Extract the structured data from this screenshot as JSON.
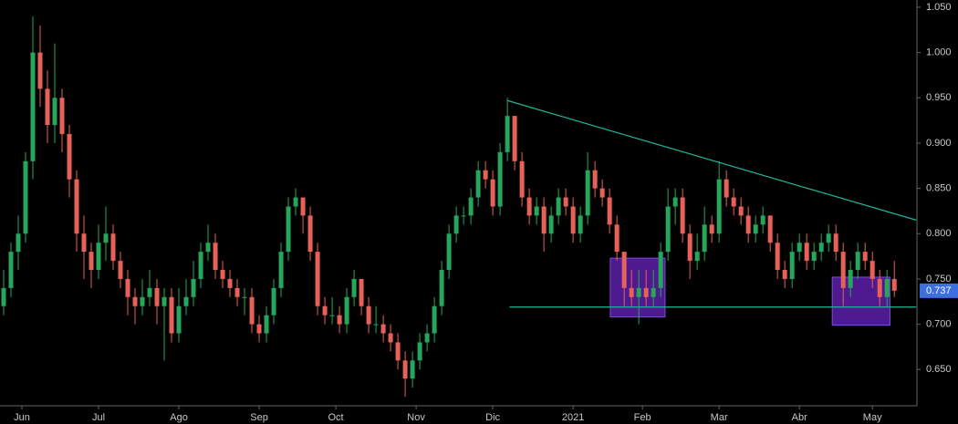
{
  "chart_data": {
    "type": "candlestick",
    "up_color": "#26a65b",
    "down_color": "#e8605a",
    "ylim": [
      0.61,
      1.058
    ],
    "yticks": [
      {
        "value": 0.65,
        "label": "0.650"
      },
      {
        "value": 0.7,
        "label": "0.700"
      },
      {
        "value": 0.75,
        "label": "0.750"
      },
      {
        "value": 0.8,
        "label": "0.800"
      },
      {
        "value": 0.85,
        "label": "0.850"
      },
      {
        "value": 0.9,
        "label": "0.900"
      },
      {
        "value": 0.95,
        "label": "0.950"
      },
      {
        "value": 1.0,
        "label": "1.000"
      },
      {
        "value": 1.05,
        "label": "1.050"
      }
    ],
    "xlim": [
      -0.5,
      125.1
    ],
    "xticks": [
      {
        "value": 2.5,
        "label": "Jun"
      },
      {
        "value": 13,
        "label": "Jul"
      },
      {
        "value": 24,
        "label": "Ago"
      },
      {
        "value": 35,
        "label": "Sep"
      },
      {
        "value": 45.5,
        "label": "Oct"
      },
      {
        "value": 56.5,
        "label": "Nov"
      },
      {
        "value": 67,
        "label": "Dic"
      },
      {
        "value": 78,
        "label": "2021"
      },
      {
        "value": 87.5,
        "label": "Feb"
      },
      {
        "value": 98,
        "label": "Mar"
      },
      {
        "value": 109,
        "label": "Abr"
      },
      {
        "value": 119,
        "label": "May"
      }
    ],
    "ohlc": [
      [
        0.72,
        0.76,
        0.71,
        0.74
      ],
      [
        0.74,
        0.79,
        0.73,
        0.78
      ],
      [
        0.78,
        0.82,
        0.76,
        0.8
      ],
      [
        0.8,
        0.89,
        0.79,
        0.88
      ],
      [
        0.88,
        1.04,
        0.86,
        1.0
      ],
      [
        1.0,
        1.03,
        0.94,
        0.96
      ],
      [
        0.96,
        0.98,
        0.9,
        0.92
      ],
      [
        0.92,
        1.01,
        0.9,
        0.95
      ],
      [
        0.95,
        0.96,
        0.89,
        0.91
      ],
      [
        0.91,
        0.92,
        0.84,
        0.86
      ],
      [
        0.86,
        0.87,
        0.78,
        0.8
      ],
      [
        0.8,
        0.82,
        0.75,
        0.78
      ],
      [
        0.78,
        0.79,
        0.74,
        0.76
      ],
      [
        0.76,
        0.81,
        0.75,
        0.79
      ],
      [
        0.79,
        0.83,
        0.77,
        0.8
      ],
      [
        0.8,
        0.81,
        0.76,
        0.77
      ],
      [
        0.77,
        0.78,
        0.74,
        0.75
      ],
      [
        0.75,
        0.76,
        0.71,
        0.73
      ],
      [
        0.73,
        0.74,
        0.7,
        0.72
      ],
      [
        0.72,
        0.75,
        0.71,
        0.73
      ],
      [
        0.73,
        0.76,
        0.72,
        0.74
      ],
      [
        0.74,
        0.75,
        0.7,
        0.72
      ],
      [
        0.72,
        0.74,
        0.66,
        0.73
      ],
      [
        0.73,
        0.74,
        0.68,
        0.69
      ],
      [
        0.69,
        0.74,
        0.68,
        0.72
      ],
      [
        0.72,
        0.75,
        0.71,
        0.73
      ],
      [
        0.73,
        0.77,
        0.72,
        0.75
      ],
      [
        0.75,
        0.79,
        0.74,
        0.78
      ],
      [
        0.78,
        0.81,
        0.77,
        0.79
      ],
      [
        0.79,
        0.8,
        0.75,
        0.76
      ],
      [
        0.76,
        0.77,
        0.74,
        0.75
      ],
      [
        0.75,
        0.76,
        0.73,
        0.74
      ],
      [
        0.74,
        0.75,
        0.72,
        0.73
      ],
      [
        0.73,
        0.74,
        0.71,
        0.73
      ],
      [
        0.73,
        0.74,
        0.69,
        0.7
      ],
      [
        0.7,
        0.71,
        0.68,
        0.69
      ],
      [
        0.69,
        0.72,
        0.68,
        0.71
      ],
      [
        0.71,
        0.75,
        0.7,
        0.74
      ],
      [
        0.74,
        0.79,
        0.73,
        0.78
      ],
      [
        0.78,
        0.84,
        0.77,
        0.83
      ],
      [
        0.83,
        0.85,
        0.82,
        0.84
      ],
      [
        0.84,
        0.84,
        0.8,
        0.82
      ],
      [
        0.82,
        0.83,
        0.77,
        0.78
      ],
      [
        0.78,
        0.79,
        0.71,
        0.72
      ],
      [
        0.72,
        0.73,
        0.7,
        0.71
      ],
      [
        0.71,
        0.73,
        0.7,
        0.71
      ],
      [
        0.71,
        0.72,
        0.69,
        0.7
      ],
      [
        0.7,
        0.74,
        0.69,
        0.73
      ],
      [
        0.73,
        0.76,
        0.72,
        0.75
      ],
      [
        0.75,
        0.75,
        0.71,
        0.72
      ],
      [
        0.72,
        0.73,
        0.69,
        0.7
      ],
      [
        0.7,
        0.72,
        0.69,
        0.7
      ],
      [
        0.7,
        0.71,
        0.68,
        0.69
      ],
      [
        0.69,
        0.7,
        0.67,
        0.68
      ],
      [
        0.68,
        0.69,
        0.65,
        0.66
      ],
      [
        0.66,
        0.67,
        0.62,
        0.64
      ],
      [
        0.64,
        0.67,
        0.63,
        0.66
      ],
      [
        0.66,
        0.69,
        0.65,
        0.68
      ],
      [
        0.68,
        0.7,
        0.67,
        0.69
      ],
      [
        0.69,
        0.73,
        0.68,
        0.72
      ],
      [
        0.72,
        0.77,
        0.71,
        0.76
      ],
      [
        0.76,
        0.81,
        0.75,
        0.8
      ],
      [
        0.8,
        0.83,
        0.79,
        0.82
      ],
      [
        0.82,
        0.83,
        0.81,
        0.82
      ],
      [
        0.82,
        0.85,
        0.81,
        0.84
      ],
      [
        0.84,
        0.88,
        0.83,
        0.87
      ],
      [
        0.87,
        0.88,
        0.85,
        0.86
      ],
      [
        0.86,
        0.87,
        0.82,
        0.83
      ],
      [
        0.83,
        0.9,
        0.82,
        0.89
      ],
      [
        0.89,
        0.95,
        0.88,
        0.93
      ],
      [
        0.93,
        0.93,
        0.87,
        0.88
      ],
      [
        0.88,
        0.89,
        0.83,
        0.84
      ],
      [
        0.84,
        0.85,
        0.81,
        0.82
      ],
      [
        0.82,
        0.84,
        0.81,
        0.83
      ],
      [
        0.83,
        0.84,
        0.78,
        0.8
      ],
      [
        0.8,
        0.83,
        0.79,
        0.82
      ],
      [
        0.82,
        0.85,
        0.81,
        0.84
      ],
      [
        0.84,
        0.85,
        0.82,
        0.83
      ],
      [
        0.83,
        0.84,
        0.79,
        0.8
      ],
      [
        0.8,
        0.83,
        0.79,
        0.82
      ],
      [
        0.82,
        0.89,
        0.81,
        0.87
      ],
      [
        0.87,
        0.88,
        0.84,
        0.85
      ],
      [
        0.85,
        0.86,
        0.83,
        0.84
      ],
      [
        0.84,
        0.85,
        0.8,
        0.81
      ],
      [
        0.81,
        0.82,
        0.77,
        0.78
      ],
      [
        0.78,
        0.78,
        0.72,
        0.74
      ],
      [
        0.74,
        0.76,
        0.72,
        0.73
      ],
      [
        0.73,
        0.76,
        0.7,
        0.74
      ],
      [
        0.74,
        0.76,
        0.72,
        0.73
      ],
      [
        0.73,
        0.76,
        0.72,
        0.74
      ],
      [
        0.74,
        0.79,
        0.73,
        0.78
      ],
      [
        0.78,
        0.85,
        0.77,
        0.83
      ],
      [
        0.83,
        0.85,
        0.81,
        0.84
      ],
      [
        0.84,
        0.85,
        0.79,
        0.8
      ],
      [
        0.8,
        0.81,
        0.75,
        0.77
      ],
      [
        0.77,
        0.8,
        0.76,
        0.78
      ],
      [
        0.78,
        0.83,
        0.77,
        0.81
      ],
      [
        0.81,
        0.82,
        0.79,
        0.8
      ],
      [
        0.8,
        0.88,
        0.79,
        0.86
      ],
      [
        0.86,
        0.87,
        0.83,
        0.84
      ],
      [
        0.84,
        0.85,
        0.82,
        0.83
      ],
      [
        0.83,
        0.84,
        0.81,
        0.82
      ],
      [
        0.82,
        0.83,
        0.79,
        0.8
      ],
      [
        0.8,
        0.82,
        0.79,
        0.81
      ],
      [
        0.81,
        0.83,
        0.8,
        0.82
      ],
      [
        0.82,
        0.82,
        0.78,
        0.79
      ],
      [
        0.79,
        0.8,
        0.75,
        0.76
      ],
      [
        0.76,
        0.77,
        0.74,
        0.75
      ],
      [
        0.75,
        0.79,
        0.74,
        0.78
      ],
      [
        0.78,
        0.8,
        0.77,
        0.79
      ],
      [
        0.79,
        0.8,
        0.76,
        0.77
      ],
      [
        0.77,
        0.79,
        0.76,
        0.78
      ],
      [
        0.78,
        0.8,
        0.77,
        0.79
      ],
      [
        0.79,
        0.81,
        0.78,
        0.8
      ],
      [
        0.8,
        0.81,
        0.77,
        0.78
      ],
      [
        0.78,
        0.79,
        0.72,
        0.74
      ],
      [
        0.74,
        0.77,
        0.73,
        0.76
      ],
      [
        0.76,
        0.79,
        0.75,
        0.78
      ],
      [
        0.78,
        0.79,
        0.76,
        0.77
      ],
      [
        0.77,
        0.78,
        0.74,
        0.75
      ],
      [
        0.75,
        0.76,
        0.72,
        0.73
      ],
      [
        0.73,
        0.76,
        0.72,
        0.75
      ],
      [
        0.75,
        0.77,
        0.73,
        0.737
      ]
    ],
    "lines": [
      {
        "x": [
          69,
          125
        ],
        "y": [
          0.947,
          0.815
        ],
        "color": "#1fb59a"
      },
      {
        "x": [
          69.3,
          125
        ],
        "y": [
          0.719,
          0.719
        ],
        "color": "#1fb59a"
      }
    ],
    "boxes": [
      {
        "x": [
          83.1,
          90.6
        ],
        "y": [
          0.708,
          0.773
        ],
        "color": "#5b1fa8"
      },
      {
        "x": [
          113.5,
          121.4
        ],
        "y": [
          0.699,
          0.752
        ],
        "color": "#5b1fa8"
      }
    ],
    "last_price": 0.737,
    "last_price_color": "#3d6fe0"
  }
}
